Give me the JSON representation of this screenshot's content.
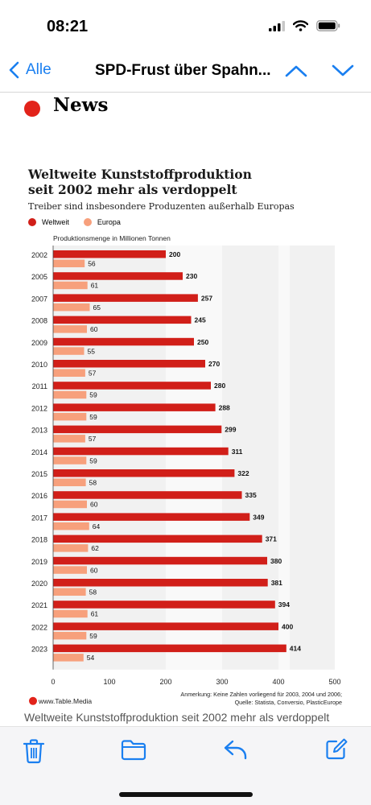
{
  "status": {
    "time": "08:21"
  },
  "nav": {
    "back_label": "Alle",
    "title": "SPD-Frust über Spahn...",
    "icons": [
      "chevron-left-icon",
      "chevron-up-icon",
      "chevron-down-icon"
    ]
  },
  "section": {
    "label": "News",
    "accent": "#e2231a"
  },
  "chart_data": {
    "type": "bar",
    "orientation": "horizontal",
    "title": "Weltweite Kunststoffproduktion seit 2002 mehr als verdoppelt",
    "title_lines": [
      "Weltweite Kunststoffproduktion",
      "seit 2002 mehr als verdoppelt"
    ],
    "subtitle": "Treiber sind insbesondere Produzenten außerhalb Europas",
    "ylabel": "Produktionsmenge in Millionen Tonnen",
    "categories": [
      "2002",
      "2005",
      "2007",
      "2008",
      "2009",
      "2010",
      "2011",
      "2012",
      "2013",
      "2014",
      "2015",
      "2016",
      "2017",
      "2018",
      "2019",
      "2020",
      "2021",
      "2022",
      "2023"
    ],
    "series": [
      {
        "name": "Weltweit",
        "color": "#e2231a",
        "values": [
          200,
          230,
          257,
          245,
          250,
          270,
          280,
          288,
          299,
          311,
          322,
          335,
          349,
          371,
          380,
          381,
          394,
          400,
          414
        ]
      },
      {
        "name": "Europa",
        "color": "#f7a07c",
        "values": [
          56,
          61,
          65,
          60,
          55,
          57,
          59,
          59,
          57,
          59,
          58,
          60,
          64,
          62,
          60,
          58,
          61,
          59,
          54
        ]
      }
    ],
    "xlim": [
      0,
      500
    ],
    "xticks": [
      0,
      100,
      200,
      300,
      400,
      500
    ],
    "grid": false,
    "legend_position": "top-left",
    "source_logo": "www.Table.Media",
    "note": "Anmerkung: Keine Zahlen vorliegend für 2003, 2004 und 2006;",
    "source": "Quelle: Statista, Conversio, PlasticEurope"
  },
  "caption": "Weltweite Kunststoffproduktion seit 2002 mehr als verdoppelt",
  "toolbar": {
    "icons": [
      "trash-icon",
      "folder-icon",
      "reply-icon",
      "compose-icon"
    ],
    "tint": "#1a7ff0"
  }
}
